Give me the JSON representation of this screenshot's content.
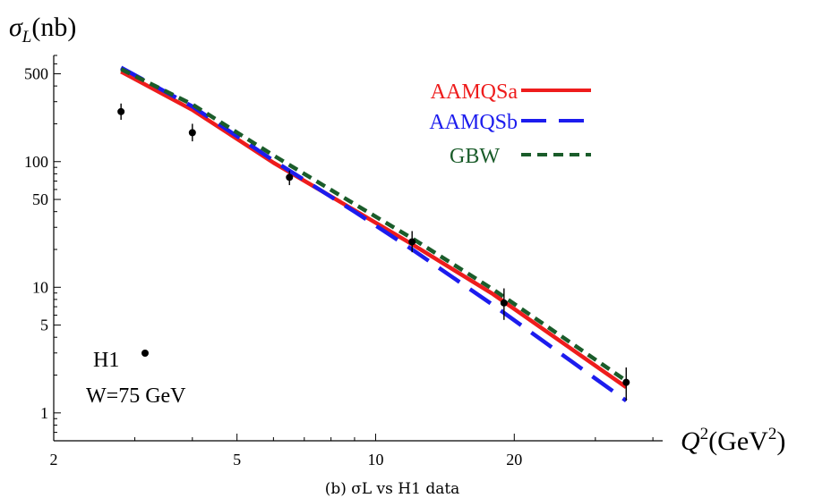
{
  "chart_data": {
    "type": "line",
    "caption": "(b) σL vs H1 data",
    "y_axis_title": {
      "symbol": "σ",
      "sub": "L",
      "unit": "(nb)"
    },
    "x_axis_title": {
      "symbol": "Q",
      "sup": "2",
      "unit_pre": "(GeV",
      "unit_sup": "2",
      "unit_post": ")"
    },
    "x_scale": "log",
    "y_scale": "log",
    "xlim": [
      2,
      42
    ],
    "ylim": [
      0.6,
      700
    ],
    "x_ticks": [
      {
        "value": 2,
        "label": "2"
      },
      {
        "value": 5,
        "label": "5"
      },
      {
        "value": 10,
        "label": "10"
      },
      {
        "value": 20,
        "label": "20"
      }
    ],
    "y_ticks": [
      {
        "value": 1,
        "label": "1"
      },
      {
        "value": 5,
        "label": "5"
      },
      {
        "value": 10,
        "label": "10"
      },
      {
        "value": 50,
        "label": "50"
      },
      {
        "value": 100,
        "label": "100"
      },
      {
        "value": 500,
        "label": "500"
      }
    ],
    "legend": {
      "placement": "top-right"
    },
    "series": [
      {
        "name": "AAMQSa",
        "color": "#ee1c1c",
        "dash": "solid",
        "x": [
          2.8,
          4,
          6,
          9,
          12,
          18,
          35
        ],
        "y": [
          520,
          258,
          98,
          41,
          22,
          8.8,
          1.6
        ]
      },
      {
        "name": "AAMQSb",
        "color": "#1c1cee",
        "dash": "long-dash",
        "x": [
          2.8,
          4,
          6,
          9,
          12,
          18,
          35
        ],
        "y": [
          560,
          275,
          102,
          40,
          20,
          7.2,
          1.25
        ]
      },
      {
        "name": "GBW",
        "color": "#1a5c2a",
        "dash": "short-dash",
        "x": [
          2.8,
          4,
          6,
          9,
          12,
          18,
          35
        ],
        "y": [
          545,
          285,
          112,
          46,
          24.5,
          9.6,
          1.8
        ]
      }
    ],
    "data_series": {
      "label": "H1",
      "note": "W=75 GeV",
      "color": "#000000",
      "points": [
        {
          "x": 2.8,
          "y": 250,
          "err_lo": 215,
          "err_hi": 290
        },
        {
          "x": 4.0,
          "y": 170,
          "err_lo": 145,
          "err_hi": 200
        },
        {
          "x": 6.5,
          "y": 75,
          "err_lo": 65,
          "err_hi": 85
        },
        {
          "x": 12,
          "y": 23,
          "err_lo": 19,
          "err_hi": 28
        },
        {
          "x": 19,
          "y": 7.5,
          "err_lo": 5.5,
          "err_hi": 9.8
        },
        {
          "x": 35,
          "y": 1.75,
          "err_lo": 1.25,
          "err_hi": 2.3
        }
      ]
    }
  }
}
